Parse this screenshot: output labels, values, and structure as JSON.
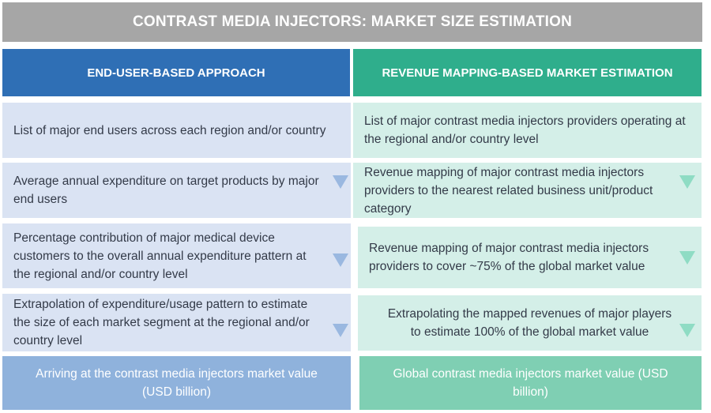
{
  "title": "CONTRAST MEDIA INJECTORS: MARKET SIZE ESTIMATION",
  "left": {
    "header": "END-USER-BASED APPROACH",
    "steps": [
      "List of major end users across each region and/or country",
      "Average annual expenditure on target products by major end users",
      "Percentage contribution of major medical device customers to the overall annual expenditure pattern at the regional and/or country level",
      "Extrapolation of expenditure/usage pattern to estimate the size of each market segment at the regional and/or country level"
    ],
    "result": "Arriving at the contrast media injectors market value (USD billion)"
  },
  "right": {
    "header": "REVENUE MAPPING-BASED MARKET ESTIMATION",
    "steps": [
      "List of major contrast media injectors providers operating at the regional and/or country level",
      "Revenue mapping of major contrast media injectors providers to the nearest related business unit/product category",
      "Revenue mapping of major contrast media injectors providers to cover ~75% of the global market value",
      "Extrapolating the mapped revenues of major players to estimate 100% of the global market value"
    ],
    "result": "Global contrast media injectors market value (USD billion)"
  },
  "icons": {
    "step_arrow": "down-triangle-icon"
  },
  "colors": {
    "title_bg": "#a6a6a6",
    "left_header": "#2f6fb5",
    "right_header": "#2fae8c",
    "left_cell": "#dae3f3",
    "right_cell": "#d4efe8",
    "left_result": "#8fb2dc",
    "right_result": "#7fcfb3"
  }
}
